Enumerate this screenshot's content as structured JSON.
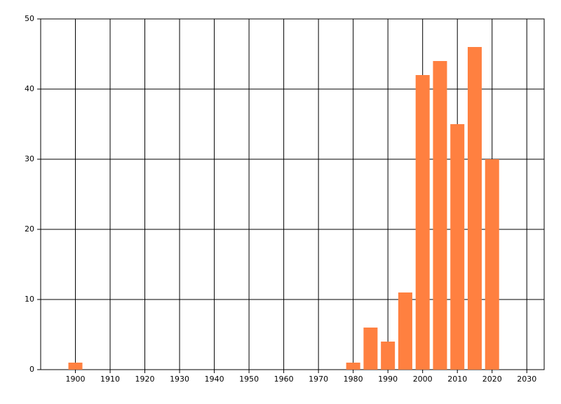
{
  "chart_data": {
    "type": "bar",
    "x": [
      1900,
      1980,
      1985,
      1990,
      1995,
      2000,
      2005,
      2010,
      2015,
      2020
    ],
    "values": [
      1,
      1,
      6,
      4,
      11,
      42,
      44,
      35,
      46,
      30
    ],
    "color": "#ff8040",
    "xlim": [
      1890,
      2035
    ],
    "xticks": [
      1900,
      1910,
      1920,
      1930,
      1940,
      1950,
      1960,
      1970,
      1980,
      1990,
      2000,
      2010,
      2020,
      2030
    ],
    "ylim": [
      0,
      50
    ],
    "yticks": [
      0,
      10,
      20,
      30,
      40,
      50
    ],
    "grid": true
  }
}
